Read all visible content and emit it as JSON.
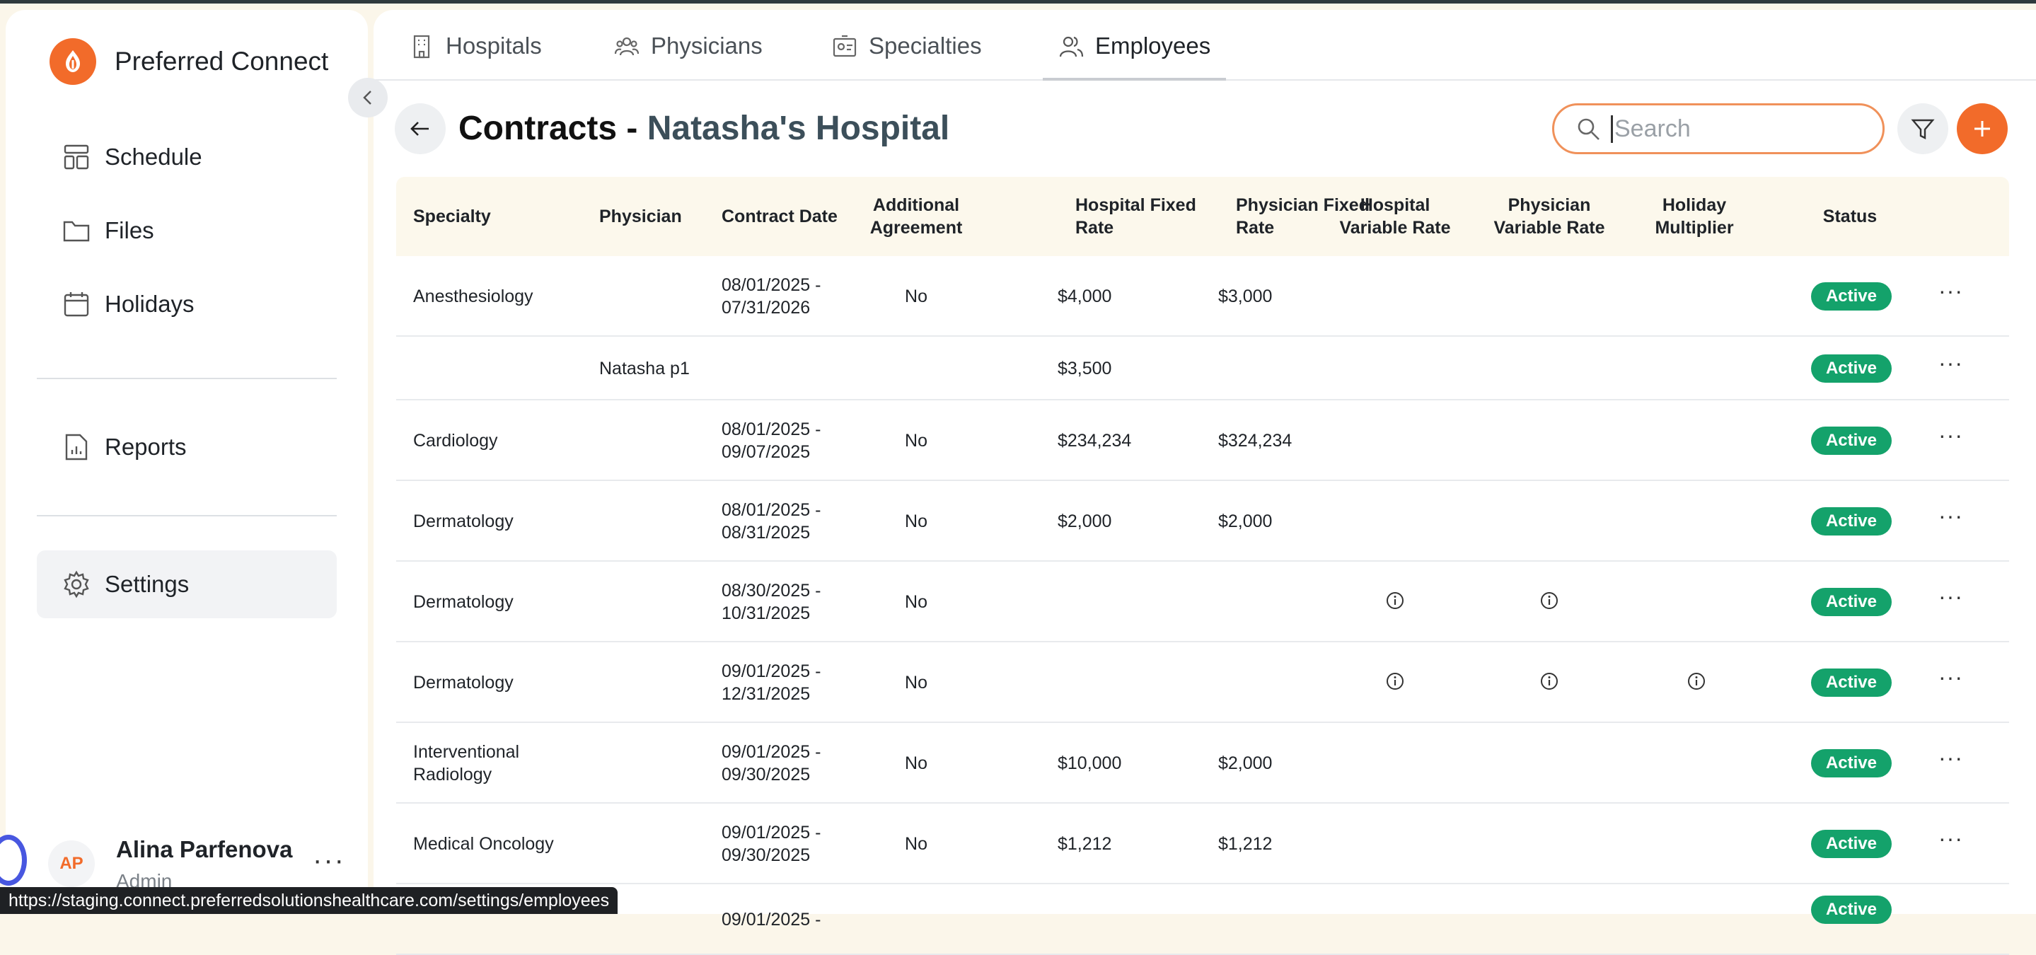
{
  "brand": {
    "name": "Preferred Connect",
    "accent": "#f26b2a"
  },
  "sidebar": {
    "items": [
      {
        "label": "Schedule",
        "icon": "schedule-icon"
      },
      {
        "label": "Files",
        "icon": "folder-icon"
      },
      {
        "label": "Holidays",
        "icon": "calendar-icon"
      },
      {
        "label": "Reports",
        "icon": "report-icon"
      },
      {
        "label": "Settings",
        "icon": "gear-icon",
        "active": true
      }
    ]
  },
  "user": {
    "initials": "AP",
    "name": "Alina Parfenova",
    "role": "Admin"
  },
  "tabs": [
    {
      "label": "Hospitals",
      "icon": "building-icon"
    },
    {
      "label": "Physicians",
      "icon": "users-icon"
    },
    {
      "label": "Specialties",
      "icon": "id-card-icon"
    },
    {
      "label": "Employees",
      "icon": "user-group-icon",
      "active": true
    }
  ],
  "header": {
    "title_prefix": "Contracts - ",
    "hospital": "Natasha's Hospital"
  },
  "search": {
    "placeholder": "Search",
    "value": ""
  },
  "table": {
    "columns": [
      "Specialty",
      "Physician",
      "Contract Date",
      "Additional Agreement",
      "Hospital Fixed Rate",
      "Physician Fixed Rate",
      "Hospital Variable Rate",
      "Physician Variable Rate",
      "Holiday Multiplier",
      "Status"
    ],
    "rows": [
      {
        "specialty": "Anesthesiology",
        "physician": "",
        "date1": "08/01/2025 -",
        "date2": "07/31/2026",
        "additional": "No",
        "hosp_fixed": "$4,000",
        "phys_fixed": "$3,000",
        "hosp_var_info": false,
        "phys_var_info": false,
        "holiday_info": false,
        "status": "Active"
      },
      {
        "specialty": "",
        "physician": "Natasha p1",
        "date1": "",
        "date2": "",
        "additional": "",
        "hosp_fixed": "$3,500",
        "phys_fixed": "",
        "hosp_var_info": false,
        "phys_var_info": false,
        "holiday_info": false,
        "status": "Active"
      },
      {
        "specialty": "Cardiology",
        "physician": "",
        "date1": "08/01/2025 -",
        "date2": "09/07/2025",
        "additional": "No",
        "hosp_fixed": "$234,234",
        "phys_fixed": "$324,234",
        "hosp_var_info": false,
        "phys_var_info": false,
        "holiday_info": false,
        "status": "Active"
      },
      {
        "specialty": "Dermatology",
        "physician": "",
        "date1": "08/01/2025 -",
        "date2": "08/31/2025",
        "additional": "No",
        "hosp_fixed": "$2,000",
        "phys_fixed": "$2,000",
        "hosp_var_info": false,
        "phys_var_info": false,
        "holiday_info": false,
        "status": "Active"
      },
      {
        "specialty": "Dermatology",
        "physician": "",
        "date1": "08/30/2025 -",
        "date2": "10/31/2025",
        "additional": "No",
        "hosp_fixed": "",
        "phys_fixed": "",
        "hosp_var_info": true,
        "phys_var_info": true,
        "holiday_info": false,
        "status": "Active"
      },
      {
        "specialty": "Dermatology",
        "physician": "",
        "date1": "09/01/2025 -",
        "date2": "12/31/2025",
        "additional": "No",
        "hosp_fixed": "",
        "phys_fixed": "",
        "hosp_var_info": true,
        "phys_var_info": true,
        "holiday_info": true,
        "status": "Active"
      },
      {
        "specialty": "Interventional Radiology",
        "physician": "",
        "date1": "09/01/2025 -",
        "date2": "09/30/2025",
        "additional": "No",
        "hosp_fixed": "$10,000",
        "phys_fixed": "$2,000",
        "hosp_var_info": false,
        "phys_var_info": false,
        "holiday_info": false,
        "status": "Active"
      },
      {
        "specialty": "Medical Oncology",
        "physician": "",
        "date1": "09/01/2025 -",
        "date2": "09/30/2025",
        "additional": "No",
        "hosp_fixed": "$1,212",
        "phys_fixed": "$1,212",
        "hosp_var_info": false,
        "phys_var_info": false,
        "holiday_info": false,
        "status": "Active"
      },
      {
        "specialty": "",
        "physician": "",
        "date1": "09/01/2025 -",
        "date2": "",
        "additional": "",
        "hosp_fixed": "",
        "phys_fixed": "",
        "hosp_var_info": false,
        "phys_var_info": false,
        "holiday_info": false,
        "status": "Active"
      }
    ]
  },
  "status_bar": {
    "url": "https://staging.connect.preferredsolutionshealthcare.com/settings/employees"
  },
  "colors": {
    "accent": "#f26b2a",
    "active_badge": "#14a26b",
    "header_bg": "#fcf8ec",
    "title_hospital": "#3c4f5a"
  }
}
